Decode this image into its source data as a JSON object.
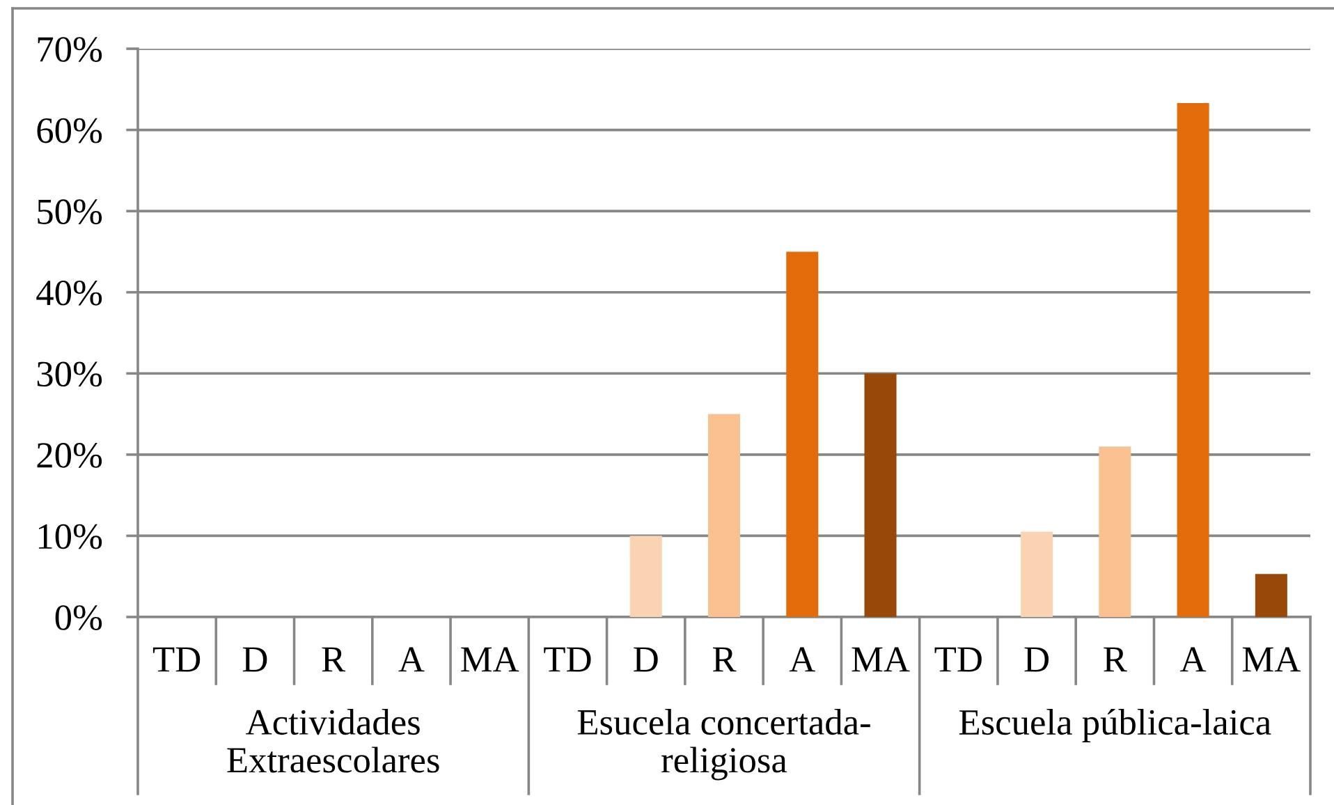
{
  "chart_data": {
    "type": "bar",
    "categories": [
      "TD",
      "D",
      "R",
      "A",
      "MA",
      "TD",
      "D",
      "R",
      "A",
      "MA",
      "TD",
      "D",
      "R",
      "A",
      "MA"
    ],
    "values": [
      0,
      0,
      0,
      0,
      0,
      0,
      10,
      25,
      45,
      30,
      0,
      10.5,
      21,
      63.3,
      5.3
    ],
    "colors": [
      "#fde9d9",
      "#fad4b2",
      "#f9c18f",
      "#e36c0a",
      "#984808",
      "#fde9d9",
      "#fad4b2",
      "#f9c18f",
      "#e36c0a",
      "#984808",
      "#fde9d9",
      "#fad4b2",
      "#f9c18f",
      "#e36c0a",
      "#984808"
    ],
    "ylim": [
      0,
      70
    ],
    "yticks": [
      {
        "value": 0,
        "label": "0%"
      },
      {
        "value": 10,
        "label": "10%"
      },
      {
        "value": 20,
        "label": "20%"
      },
      {
        "value": 30,
        "label": "30%"
      },
      {
        "value": 40,
        "label": "40%"
      },
      {
        "value": 50,
        "label": "50%"
      },
      {
        "value": 60,
        "label": "60%"
      },
      {
        "value": 70,
        "label": "70%"
      }
    ],
    "grid": "y",
    "annotations": [
      "Actividades Extraescolares",
      "Esucela concertada-religiosa",
      "Escuela pública-laica"
    ]
  }
}
